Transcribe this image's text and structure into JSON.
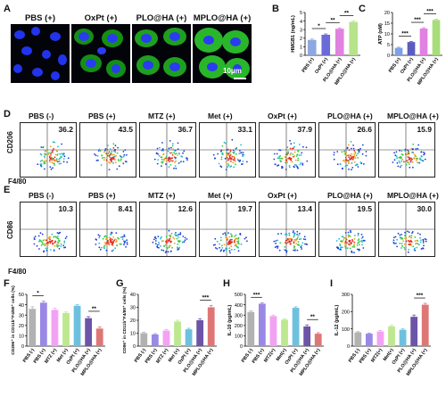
{
  "panels": {
    "A": "A",
    "B": "B",
    "C": "C",
    "D": "D",
    "E": "E",
    "F": "F",
    "G": "G",
    "H": "H",
    "I": "I"
  },
  "microscopy": {
    "titles": [
      "PBS (+)",
      "OxPt (+)",
      "PLO@HA (+)",
      "MPLO@HA (+)"
    ],
    "scale_bar": "10μm"
  },
  "flow_common": {
    "groups": [
      "PBS",
      "PBS",
      "MTZ",
      "Met",
      "OxPt",
      "PLO@HA",
      "MPLO@HA"
    ],
    "signs": [
      "(-)",
      "(+)",
      "(+)",
      "(+)",
      "(+)",
      "(+)",
      "(+)"
    ],
    "xlabel": "F4/80"
  },
  "flow_D": {
    "ylabel": "CD206",
    "values": [
      "36.2",
      "43.5",
      "36.7",
      "33.1",
      "37.9",
      "26.6",
      "15.9"
    ]
  },
  "flow_E": {
    "ylabel": "CD86",
    "values": [
      "10.3",
      "8.41",
      "12.6",
      "19.7",
      "13.4",
      "19.5",
      "30.0"
    ]
  },
  "colors": {
    "pbs_neg": "#b2b2b2",
    "pbs_pos": "#9a88e6",
    "mtz": "#f3a2f3",
    "met": "#bde88f",
    "oxpt": "#6ec1de",
    "plo": "#6c54a8",
    "mplo": "#df7676",
    "bar_pbs": "#8ea8df",
    "bar_oxpt": "#6a6ad9",
    "bar_plo": "#e083e0",
    "bar_mplo": "#b7e38a",
    "atp_pbs": "#7fa0e6",
    "atp_oxpt": "#5c5cc0",
    "atp_plo": "#e181e1",
    "atp_mplo": "#a8dd7a"
  },
  "chart_data": [
    {
      "id": "B",
      "type": "bar",
      "categories": [
        "PBS (+)",
        "OxPt (+)",
        "PLO@HA (+)",
        "MPLO@HA (+)"
      ],
      "values": [
        1.8,
        2.4,
        3.1,
        3.9
      ],
      "errors": [
        0.1,
        0.1,
        0.1,
        0.1
      ],
      "ylabel": "HMGB1 (ng/mL)",
      "ylim": [
        0,
        5
      ],
      "yticks": [
        0,
        1,
        2,
        3,
        4,
        5
      ],
      "significance": [
        {
          "from": 0,
          "to": 1,
          "label": "*"
        },
        {
          "from": 1,
          "to": 2,
          "label": "**"
        },
        {
          "from": 2,
          "to": 3,
          "label": "**"
        }
      ]
    },
    {
      "id": "C",
      "type": "bar",
      "categories": [
        "PBS (+)",
        "OxPt (+)",
        "PLO@HA (+)",
        "MPLO@HA (+)"
      ],
      "values": [
        3.5,
        6.2,
        12.5,
        16.5
      ],
      "errors": [
        0.3,
        0.3,
        0.4,
        0.4
      ],
      "ylabel": "ATP (nM)",
      "ylim": [
        0,
        20
      ],
      "yticks": [
        0,
        5,
        10,
        15,
        20
      ],
      "significance": [
        {
          "from": 0,
          "to": 1,
          "label": "***"
        },
        {
          "from": 1,
          "to": 2,
          "label": "***"
        },
        {
          "from": 2,
          "to": 3,
          "label": "***"
        }
      ]
    },
    {
      "id": "F",
      "type": "bar",
      "categories": [
        "PBS (-)",
        "PBS (+)",
        "MTZ (+)",
        "Met (+)",
        "OxPt (+)",
        "PLO@HA (+)",
        "MPLO@HA (+)"
      ],
      "values": [
        36,
        42,
        35,
        32,
        39,
        27,
        17
      ],
      "errors": [
        2,
        1.5,
        1.5,
        1,
        1,
        1.5,
        1.5
      ],
      "ylabel": "CD206⁺ in CD11b⁺F4/80⁺ cells (%)",
      "ylim": [
        0,
        50
      ],
      "yticks": [
        0,
        10,
        20,
        30,
        40,
        50
      ],
      "significance": [
        {
          "from": 0,
          "to": 1,
          "label": "*"
        },
        {
          "from": 5,
          "to": 6,
          "label": "**"
        }
      ]
    },
    {
      "id": "G",
      "type": "bar",
      "categories": [
        "PBS (-)",
        "PBS (+)",
        "MTZ (+)",
        "Met (+)",
        "OxPt (+)",
        "PLO@HA (+)",
        "MPLO@HA (+)"
      ],
      "values": [
        10,
        9,
        12,
        19,
        13,
        20,
        30
      ],
      "errors": [
        0.8,
        0.6,
        0.8,
        1,
        0.8,
        1.2,
        1.5
      ],
      "ylabel": "CD86⁺ in CD11b⁺F4/80⁺ cells (%)",
      "ylim": [
        0,
        40
      ],
      "yticks": [
        0,
        10,
        20,
        30,
        40
      ],
      "significance": [
        {
          "from": 5,
          "to": 6,
          "label": "***"
        }
      ]
    },
    {
      "id": "H",
      "type": "bar",
      "categories": [
        "PBS (-)",
        "PBS (+)",
        "MTZ(+)",
        "Met(+)",
        "OxPt (+)",
        "PLO@HA (+)",
        "MPLO@HA (+)"
      ],
      "values": [
        330,
        410,
        290,
        255,
        370,
        190,
        120
      ],
      "errors": [
        10,
        10,
        10,
        8,
        10,
        15,
        10
      ],
      "ylabel": "IL-10 (pg/mL)",
      "ylim": [
        0,
        500
      ],
      "yticks": [
        0,
        100,
        200,
        300,
        400,
        500
      ],
      "significance": [
        {
          "from": 0,
          "to": 1,
          "label": "***"
        },
        {
          "from": 5,
          "to": 6,
          "label": "**"
        }
      ]
    },
    {
      "id": "I",
      "type": "bar",
      "categories": [
        "PBS (-)",
        "PBS (+)",
        "MTZ(+)",
        "Met(+)",
        "OxPt (+)",
        "PLO@HA (+)",
        "MPLO@HA (+)"
      ],
      "values": [
        80,
        72,
        85,
        115,
        95,
        170,
        240
      ],
      "errors": [
        4,
        4,
        5,
        6,
        5,
        10,
        8
      ],
      "ylabel": "IL-12 (pg/mL)",
      "ylim": [
        0,
        300
      ],
      "yticks": [
        0,
        100,
        200,
        300
      ],
      "significance": [
        {
          "from": 5,
          "to": 6,
          "label": "***"
        }
      ]
    }
  ]
}
